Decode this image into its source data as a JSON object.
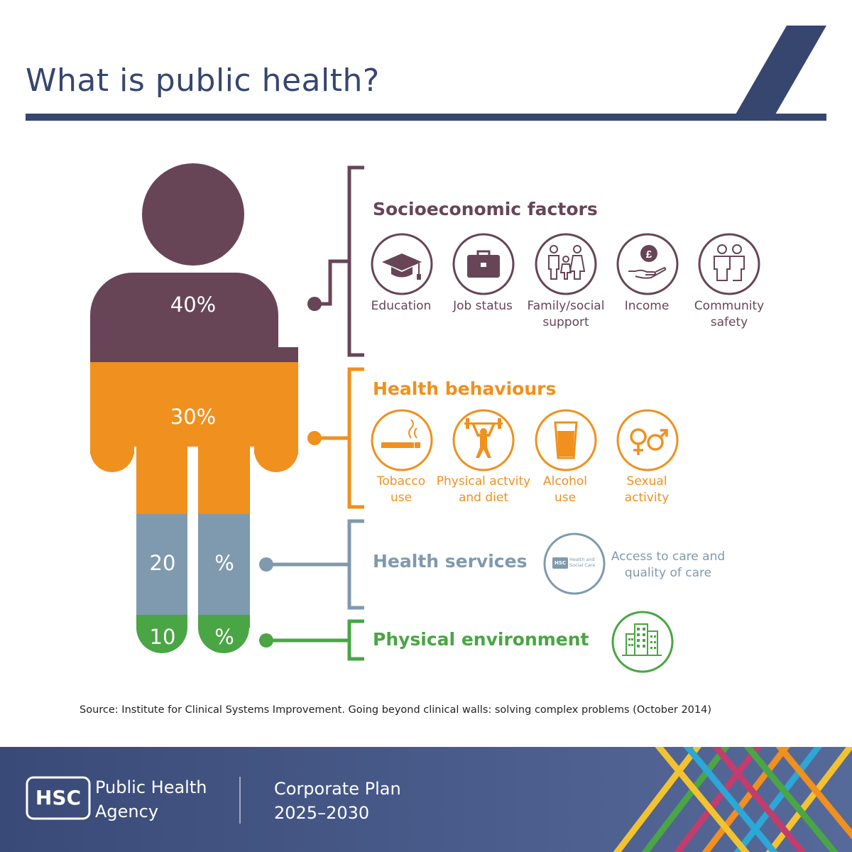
{
  "title": "What is public health?",
  "colors": {
    "navy": "#36466f",
    "socioeconomic": "#674557",
    "behaviours": "#f0901e",
    "services": "#7f9aae",
    "environment": "#4aa544"
  },
  "figure": {
    "segments": [
      {
        "key": "socioeconomic",
        "percent": 40,
        "label": "40%"
      },
      {
        "key": "behaviours",
        "percent": 30,
        "label": "30%"
      },
      {
        "key": "services",
        "percent": 20,
        "label_left": "20",
        "label_right": "%"
      },
      {
        "key": "environment",
        "percent": 10,
        "label_left": "10",
        "label_right": "%"
      }
    ]
  },
  "groups": {
    "socioeconomic": {
      "heading": "Socioeconomic factors",
      "items": [
        {
          "icon": "graduation-cap-icon",
          "label": "Education"
        },
        {
          "icon": "briefcase-icon",
          "label": "Job status"
        },
        {
          "icon": "family-icon",
          "label": "Family/social\nsupport"
        },
        {
          "icon": "income-hand-pound-icon",
          "label": "Income"
        },
        {
          "icon": "community-people-icon",
          "label": "Community\nsafety"
        }
      ]
    },
    "behaviours": {
      "heading": "Health behaviours",
      "items": [
        {
          "icon": "cigarette-icon",
          "label": "Tobacco\nuse"
        },
        {
          "icon": "weightlifter-icon",
          "label": "Physical actvity\nand diet"
        },
        {
          "icon": "pint-glass-icon",
          "label": "Alcohol\nuse"
        },
        {
          "icon": "gender-symbols-icon",
          "label": "Sexual\nactivity"
        }
      ]
    },
    "services": {
      "heading": "Health services",
      "icon": "hsc-logo-icon",
      "icon_text_abbr": "HSC",
      "icon_text_name": "Health and\nSocial Care",
      "description": "Access to care and\nquality of care"
    },
    "environment": {
      "heading": "Physical environment",
      "icon": "buildings-icon"
    }
  },
  "source": "Source: Institute for Clinical Systems Improvement. Going beyond clinical walls: solving complex problems (October 2014)",
  "footer": {
    "logo_abbr": "HSC",
    "agency": "Public Health\nAgency",
    "plan": "Corporate Plan\n2025–2030"
  }
}
